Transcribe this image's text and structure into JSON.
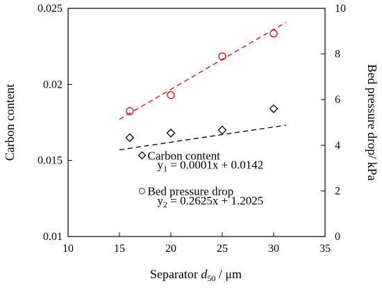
{
  "chart_data": {
    "type": "scatter",
    "x_axis": {
      "label": {
        "prefix": "Separator ",
        "var": "d",
        "sub": "50",
        "suffix": " / μm"
      },
      "lim": [
        10,
        35
      ],
      "ticks": [
        10,
        15,
        20,
        25,
        30,
        35
      ],
      "tick_labels": [
        "10",
        "15",
        "20",
        "25",
        "30",
        "35"
      ]
    },
    "y_left": {
      "label": "Carbon content",
      "lim": [
        0.01,
        0.025
      ],
      "ticks": [
        0.01,
        0.015,
        0.02,
        0.025
      ],
      "tick_labels": [
        "0.01",
        "0.015",
        "0.02",
        "0.025"
      ]
    },
    "y_right": {
      "label": "Bed pressure drop/ kPa",
      "lim": [
        0,
        10
      ],
      "ticks": [
        0,
        2,
        4,
        6,
        8,
        10
      ],
      "tick_labels": [
        "0",
        "2",
        "4",
        "6",
        "8",
        "10"
      ]
    },
    "series": [
      {
        "name": "Carbon content",
        "axis": "left",
        "marker": "diamond",
        "color": "#000000",
        "x": [
          16,
          20,
          25,
          30
        ],
        "y": [
          0.0165,
          0.0168,
          0.017,
          0.0184
        ],
        "trendline": {
          "slope": 0.0001,
          "intercept": 0.0142,
          "x_range": [
            15,
            31.2
          ],
          "color": "#000000"
        },
        "equation": {
          "var": "y",
          "sub": "1",
          "rhs": " = 0.0001x + 0.0142"
        }
      },
      {
        "name": "Bed pressure drop",
        "axis": "right",
        "marker": "circle",
        "color": "#ff0000",
        "x": [
          16,
          20,
          25,
          30
        ],
        "y": [
          5.5,
          6.2,
          7.9,
          8.9
        ],
        "trendline": {
          "slope": 0.2625,
          "intercept": 1.2025,
          "x_range": [
            15,
            31.2
          ],
          "color": "#ff0000"
        },
        "equation": {
          "var": "y",
          "sub": "2",
          "rhs": " = 0.2625x + 1.2025"
        }
      }
    ],
    "legend": {
      "placement": "inside-lower-center",
      "marker_colors": {
        "Carbon content": "#000000",
        "Bed pressure drop": "#8b5a3c"
      }
    },
    "grid": false
  }
}
